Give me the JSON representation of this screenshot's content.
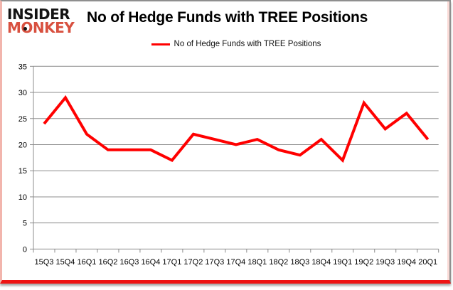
{
  "brand": {
    "line1": "INSIDER",
    "line2": "MONKEY"
  },
  "header": {
    "title": "No of Hedge Funds with TREE Positions"
  },
  "legend": {
    "label": "No of Hedge Funds with TREE Positions",
    "line_color": "#ff0000"
  },
  "colors": {
    "line": "#ff0000",
    "grid": "#8c8c8c",
    "axis_text": "#000000",
    "brand_red": "#d8503f",
    "frame_bottom": "#ee1313"
  },
  "chart_data": {
    "type": "line",
    "title": "No of Hedge Funds with TREE Positions",
    "categories": [
      "15Q3",
      "15Q4",
      "16Q1",
      "16Q2",
      "16Q3",
      "16Q4",
      "17Q1",
      "17Q2",
      "17Q3",
      "17Q4",
      "18Q1",
      "18Q2",
      "18Q3",
      "18Q4",
      "19Q1",
      "19Q2",
      "19Q3",
      "19Q4",
      "20Q1"
    ],
    "series": [
      {
        "name": "No of Hedge Funds with TREE Positions",
        "color": "#ff0000",
        "values": [
          24,
          29,
          22,
          19,
          19,
          19,
          17,
          22,
          21,
          20,
          21,
          19,
          18,
          21,
          17,
          28,
          23,
          26,
          21
        ]
      }
    ],
    "xlabel": "",
    "ylabel": "",
    "ylim": [
      0,
      35
    ],
    "yticks": [
      0,
      5,
      10,
      15,
      20,
      25,
      30,
      35
    ],
    "grid": "horizontal",
    "legend_position": "top-center"
  }
}
